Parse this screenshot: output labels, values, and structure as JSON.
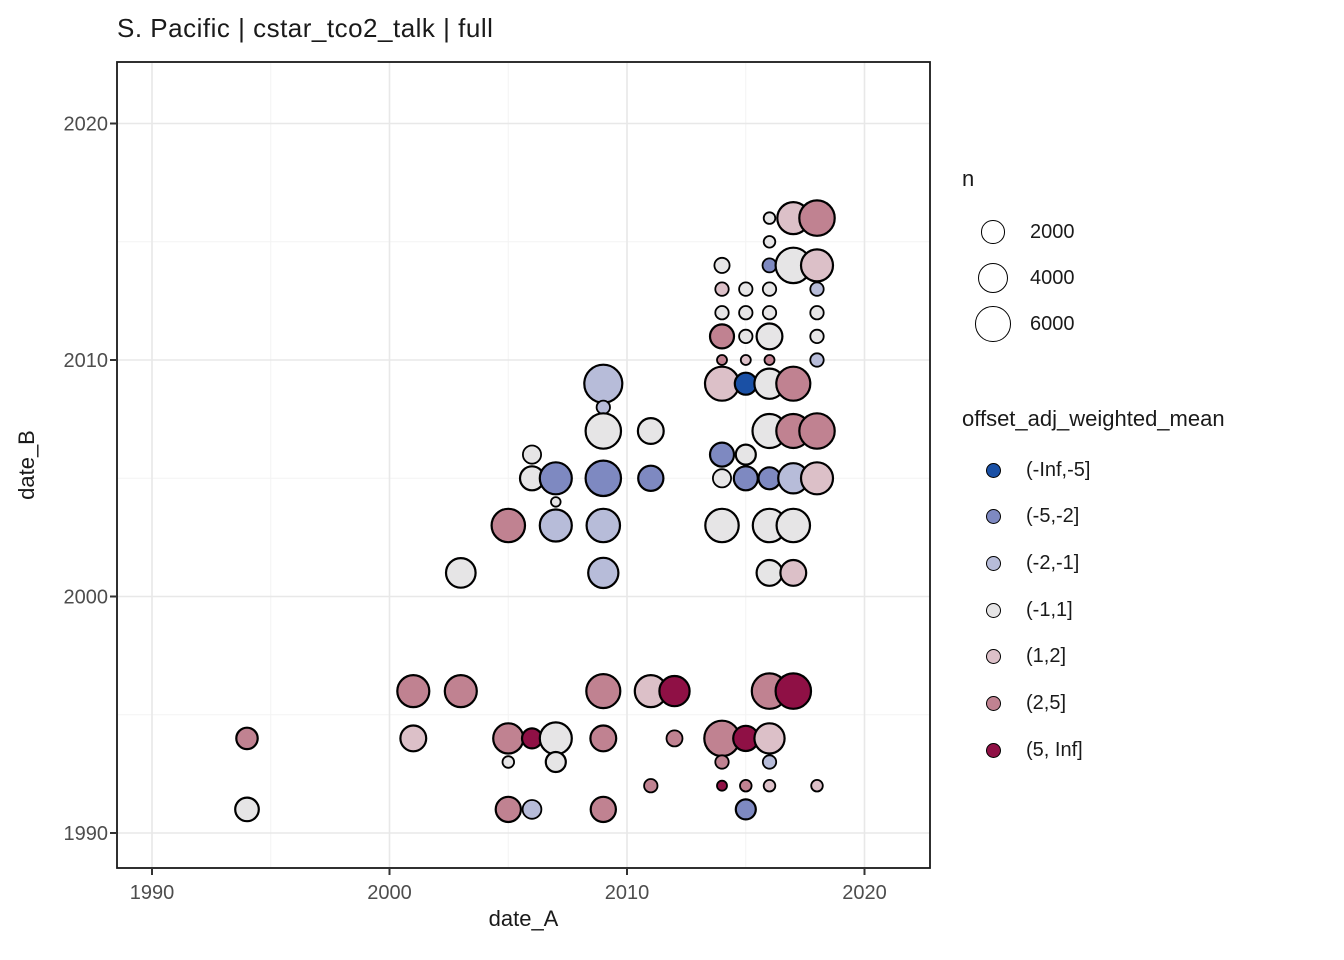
{
  "title": "S. Pacific | cstar_tco2_talk | full",
  "chart_data": {
    "type": "scatter",
    "subtype": "bubble",
    "title": "S. Pacific | cstar_tco2_talk | full",
    "xlabel": "date_A",
    "ylabel": "date_B",
    "xlim": [
      1988.5,
      2022.7
    ],
    "ylim": [
      1988.5,
      2022.6
    ],
    "x_major_ticks": [
      1990,
      2000,
      2010,
      2020
    ],
    "y_major_ticks": [
      1990,
      2000,
      2010,
      2020
    ],
    "x_minor_ticks": [
      1995,
      2005,
      2015
    ],
    "y_minor_ticks": [
      1995,
      2005,
      2015
    ],
    "grid": true,
    "legend_position": "right",
    "size_legend": {
      "title": "n",
      "values": [
        2000,
        4000,
        6000
      ]
    },
    "color_legend": {
      "title": "offset_adj_weighted_mean",
      "bins": [
        {
          "label": "(-Inf,-5]",
          "color": "#1a50a5"
        },
        {
          "label": "(-5,-2]",
          "color": "#7e89c1"
        },
        {
          "label": "(-2,-1]",
          "color": "#b7bcd9"
        },
        {
          "label": "(-1,1]",
          "color": "#e6e5e6"
        },
        {
          "label": "(1,2]",
          "color": "#dcc0c8"
        },
        {
          "label": "(2,5]",
          "color": "#c08291"
        },
        {
          "label": "(5, Inf]",
          "color": "#8f1045"
        }
      ]
    },
    "points": {
      "columns": [
        "date_A",
        "date_B",
        "bin_index",
        "n"
      ],
      "rows": [
        [
          2016,
          2016,
          3,
          150
        ],
        [
          2017,
          2016,
          4,
          4600
        ],
        [
          2018,
          2016,
          5,
          5900
        ],
        [
          2016,
          2015,
          3,
          150
        ],
        [
          2014,
          2014,
          3,
          500
        ],
        [
          2016,
          2014,
          1,
          350
        ],
        [
          2017,
          2014,
          3,
          5900
        ],
        [
          2018,
          2014,
          4,
          4600
        ],
        [
          2014,
          2013,
          4,
          300
        ],
        [
          2015,
          2013,
          3,
          300
        ],
        [
          2016,
          2013,
          3,
          300
        ],
        [
          2018,
          2013,
          2,
          300
        ],
        [
          2014,
          2012,
          3,
          300
        ],
        [
          2015,
          2012,
          3,
          300
        ],
        [
          2016,
          2012,
          3,
          300
        ],
        [
          2018,
          2012,
          3,
          300
        ],
        [
          2014,
          2011,
          5,
          2100
        ],
        [
          2015,
          2011,
          3,
          300
        ],
        [
          2016,
          2011,
          3,
          2600
        ],
        [
          2018,
          2011,
          3,
          300
        ],
        [
          2014,
          2010,
          5,
          70
        ],
        [
          2015,
          2010,
          4,
          70
        ],
        [
          2016,
          2010,
          5,
          70
        ],
        [
          2018,
          2010,
          2,
          300
        ],
        [
          2014,
          2009,
          4,
          5300
        ],
        [
          2015,
          2009,
          0,
          1650
        ],
        [
          2016,
          2009,
          3,
          3900
        ],
        [
          2017,
          2009,
          5,
          5300
        ],
        [
          2016,
          2007,
          3,
          5300
        ],
        [
          2017,
          2007,
          5,
          5300
        ],
        [
          2018,
          2007,
          5,
          5900
        ],
        [
          2014,
          2006,
          1,
          2100
        ],
        [
          2015,
          2006,
          3,
          1250
        ],
        [
          2014,
          2005,
          3,
          900
        ],
        [
          2015,
          2005,
          1,
          2100
        ],
        [
          2016,
          2005,
          1,
          1650
        ],
        [
          2017,
          2005,
          2,
          3900
        ],
        [
          2018,
          2005,
          4,
          4600
        ],
        [
          2014,
          2003,
          3,
          5100
        ],
        [
          2016,
          2003,
          3,
          5100
        ],
        [
          2017,
          2003,
          3,
          5100
        ],
        [
          2016,
          2001,
          3,
          2600
        ],
        [
          2017,
          2001,
          4,
          2600
        ],
        [
          2009,
          2009,
          2,
          7000
        ],
        [
          2009,
          2008,
          2,
          300
        ],
        [
          2009,
          2007,
          3,
          5900
        ],
        [
          2011,
          2007,
          3,
          2600
        ],
        [
          2006,
          2006,
          3,
          900
        ],
        [
          2006,
          2005,
          3,
          2100
        ],
        [
          2007,
          2005,
          1,
          4600
        ],
        [
          2009,
          2005,
          1,
          5900
        ],
        [
          2011,
          2005,
          1,
          2400
        ],
        [
          2007,
          2004,
          3,
          50
        ],
        [
          2005,
          2003,
          5,
          5100
        ],
        [
          2007,
          2003,
          2,
          4600
        ],
        [
          2009,
          2003,
          2,
          5100
        ],
        [
          2003,
          2001,
          3,
          3700
        ],
        [
          2009,
          2001,
          2,
          3900
        ],
        [
          2001,
          1996,
          5,
          4600
        ],
        [
          2003,
          1996,
          5,
          4600
        ],
        [
          2009,
          1996,
          5,
          5300
        ],
        [
          2011,
          1996,
          4,
          4600
        ],
        [
          2012,
          1996,
          6,
          3900
        ],
        [
          2016,
          1996,
          5,
          5900
        ],
        [
          2017,
          1996,
          6,
          5900
        ],
        [
          1994,
          1994,
          5,
          1500
        ],
        [
          2001,
          1994,
          4,
          2600
        ],
        [
          2005,
          1994,
          5,
          3900
        ],
        [
          2006,
          1994,
          6,
          1250
        ],
        [
          2007,
          1994,
          3,
          4600
        ],
        [
          2009,
          1994,
          5,
          2600
        ],
        [
          2012,
          1994,
          5,
          600
        ],
        [
          2014,
          1994,
          5,
          5900
        ],
        [
          2015,
          1994,
          6,
          2400
        ],
        [
          2016,
          1994,
          4,
          3900
        ],
        [
          2005,
          1993,
          3,
          150
        ],
        [
          2007,
          1993,
          3,
          1250
        ],
        [
          2014,
          1993,
          5,
          300
        ],
        [
          2016,
          1993,
          2,
          300
        ],
        [
          2011,
          1992,
          5,
          300
        ],
        [
          2014,
          1992,
          6,
          70
        ],
        [
          2015,
          1992,
          5,
          150
        ],
        [
          2016,
          1992,
          4,
          150
        ],
        [
          2018,
          1992,
          4,
          150
        ],
        [
          1994,
          1991,
          3,
          2000
        ],
        [
          2005,
          1991,
          5,
          2400
        ],
        [
          2006,
          1991,
          2,
          1000
        ],
        [
          2009,
          1991,
          5,
          2400
        ],
        [
          2015,
          1991,
          1,
          1250
        ]
      ]
    },
    "theme": {
      "panel_background": "#ffffff",
      "panel_border": "#1a1a1a",
      "grid_major": "#e8e8e8",
      "grid_minor": "#f3f3f3",
      "tick_mark": "#333333",
      "tick_label": "#4d4d4d",
      "point_stroke": "#000000"
    }
  }
}
